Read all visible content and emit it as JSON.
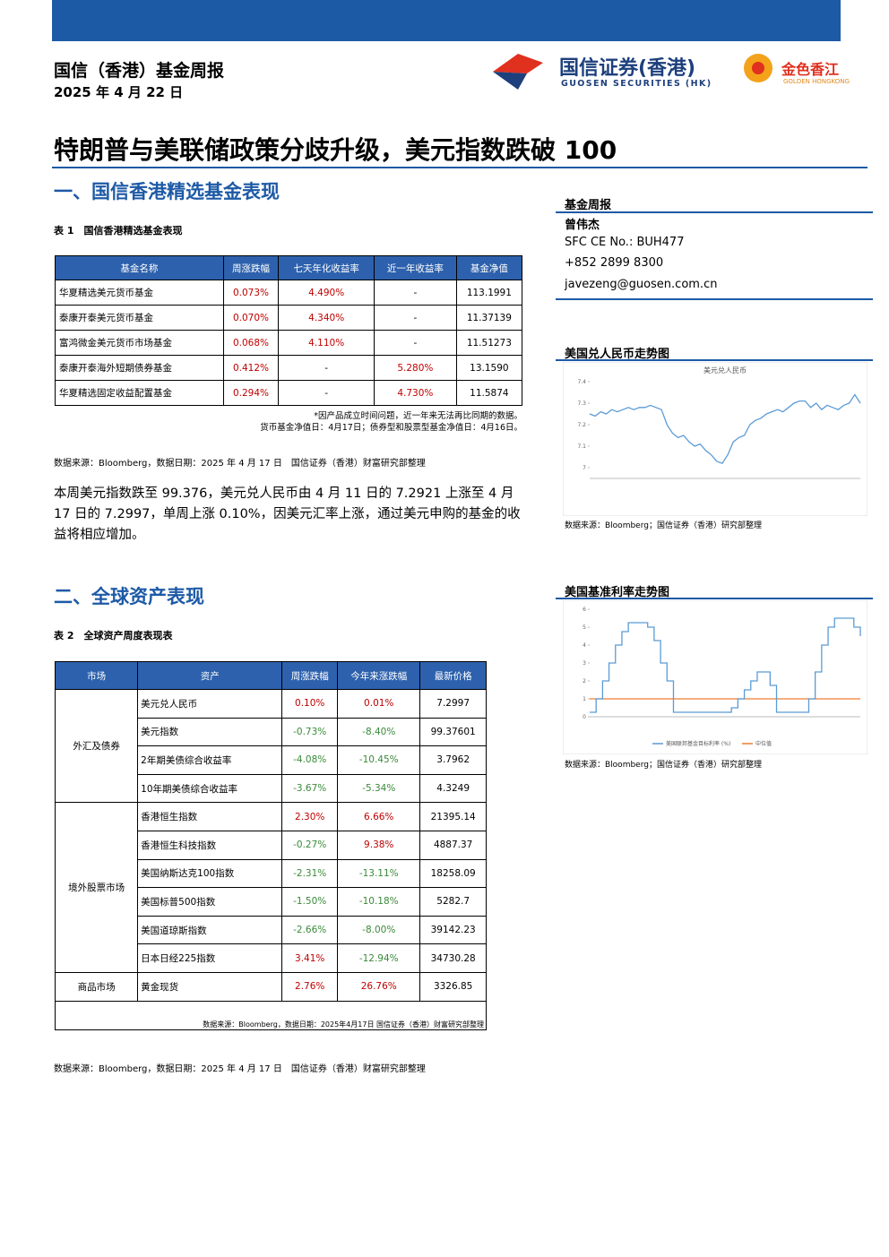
{
  "header": {
    "title": "国信（香港）基金周报",
    "date": "2025 年 4 月 22 日",
    "logo_name": "国信证券(香港)",
    "logo_english": "GUOSEN SECURITIES (HK)",
    "brand": "金色香江",
    "brand_english": "GOLDEN HONGKONG"
  },
  "headline": "特朗普与美联储政策分歧升级，美元指数跌破 100",
  "section1": {
    "heading": "一、国信香港精选基金表现",
    "caption": "表 1　国信香港精选基金表现",
    "table": {
      "columns": [
        "基金名称",
        "周涨跌幅",
        "七天年化收益率",
        "近一年收益率",
        "基金净值"
      ],
      "rows": [
        [
          "华夏精选美元货币基金",
          "0.073%",
          "4.490%",
          "-",
          "113.1991"
        ],
        [
          "泰康开泰美元货币基金",
          "0.070%",
          "4.340%",
          "-",
          "11.37139"
        ],
        [
          "富鸿微金美元货币市场基金",
          "0.068%",
          "4.110%",
          "-",
          "11.51273"
        ],
        [
          "泰康开泰海外短期债券基金",
          "0.412%",
          "-",
          "5.280%",
          "13.1590"
        ],
        [
          "华夏精选固定收益配置基金",
          "0.294%",
          "-",
          "4.730%",
          "11.5874"
        ]
      ],
      "notes": [
        "*因产品成立时间问题，近一年来无法再比同期的数据。",
        "货币基金净值日：4月17日；债券型和股票型基金净值日：4月16日。"
      ]
    },
    "source": "数据来源：Bloomberg，数据日期：2025 年 4 月 17 日　国信证券（香港）财富研究部整理",
    "paragraph": "本周美元指数跌至 99.376，美元兑人民币由 4 月 11 日的 7.2921 上涨至 4 月 17 日的 7.2997，单周上涨 0.10%，因美元汇率上涨，通过美元申购的基金的收益将相应增加。"
  },
  "section2": {
    "heading": "二、全球资产表现",
    "caption": "表 2　全球资产周度表现表",
    "table": {
      "columns": [
        "市场",
        "资产",
        "周涨跌幅",
        "今年来涨跌幅",
        "最新价格"
      ],
      "groups": [
        {
          "market": "外汇及债券",
          "rows": [
            [
              "美元兑人民币",
              "0.10%",
              "0.01%",
              "7.2997"
            ],
            [
              "美元指数",
              "-0.73%",
              "-8.40%",
              "99.37601"
            ],
            [
              "2年期美债综合收益率",
              "-4.08%",
              "-10.45%",
              "3.7962"
            ],
            [
              "10年期美债综合收益率",
              "-3.67%",
              "-5.34%",
              "4.3249"
            ]
          ]
        },
        {
          "market": "境外股票市场",
          "rows": [
            [
              "香港恒生指数",
              "2.30%",
              "6.66%",
              "21395.14"
            ],
            [
              "香港恒生科技指数",
              "-0.27%",
              "9.38%",
              "4887.37"
            ],
            [
              "美国纳斯达克100指数",
              "-2.31%",
              "-13.11%",
              "18258.09"
            ],
            [
              "美国标普500指数",
              "-1.50%",
              "-10.18%",
              "5282.7"
            ],
            [
              "美国道琼斯指数",
              "-2.66%",
              "-8.00%",
              "39142.23"
            ],
            [
              "日本日经225指数",
              "3.41%",
              "-12.94%",
              "34730.28"
            ]
          ]
        },
        {
          "market": "商品市场",
          "rows": [
            [
              "黄金现货",
              "2.76%",
              "26.76%",
              "3326.85"
            ]
          ]
        }
      ],
      "footer": "数据来源：Bloomberg，数据日期：2025年4月17日 国信证券（香港）财富研究部整理"
    },
    "source": "数据来源：Bloomberg，数据日期：2025 年 4 月 17 日　国信证券（香港）财富研究部整理"
  },
  "sidebar": {
    "label": "基金周报",
    "author": "曾伟杰",
    "sfc": "SFC CE No.: BUH477",
    "phone": "+852 2899 8300",
    "email": "javezeng@guosen.com.cn"
  },
  "charts": [
    {
      "type": "line",
      "title": "美国兑人民币走势图",
      "inner_title": "美元兑人民币",
      "color": "#5b9bd5",
      "ylim": [
        6.95,
        7.4
      ],
      "yticks": [
        7.0,
        7.1,
        7.2,
        7.3,
        7.4
      ],
      "values": [
        7.25,
        7.24,
        7.26,
        7.25,
        7.27,
        7.26,
        7.27,
        7.28,
        7.27,
        7.28,
        7.28,
        7.29,
        7.28,
        7.27,
        7.2,
        7.16,
        7.14,
        7.15,
        7.12,
        7.1,
        7.11,
        7.08,
        7.06,
        7.03,
        7.02,
        7.06,
        7.12,
        7.14,
        7.15,
        7.2,
        7.22,
        7.23,
        7.25,
        7.26,
        7.27,
        7.26,
        7.28,
        7.3,
        7.31,
        7.31,
        7.28,
        7.3,
        7.27,
        7.29,
        7.28,
        7.27,
        7.29,
        7.3,
        7.34,
        7.3
      ],
      "source": "数据来源：Bloomberg；国信证券（香港）研究部整理"
    },
    {
      "type": "line",
      "title": "美国基准利率走势图",
      "color": "#5b9bd5",
      "ylim": [
        0,
        6
      ],
      "yticks": [
        0,
        1,
        2,
        3,
        4,
        5,
        6
      ],
      "series_name": "美国联邦基金目标利率 (%)",
      "values": [
        0.25,
        1,
        2,
        3,
        4,
        4.75,
        5.25,
        5.25,
        5.25,
        5,
        4.25,
        3,
        2,
        0.25,
        0.25,
        0.25,
        0.25,
        0.25,
        0.25,
        0.25,
        0.25,
        0.25,
        0.5,
        1,
        1.5,
        2,
        2.5,
        2.5,
        1.75,
        0.25,
        0.25,
        0.25,
        0.25,
        0.25,
        1,
        2.5,
        4,
        5,
        5.5,
        5.5,
        5.5,
        5,
        4.5
      ],
      "reference_line": {
        "name": "中位值",
        "value": 1,
        "color": "#ed7d31"
      },
      "source": "数据来源：Bloomberg；国信证券（香港）研究部整理"
    }
  ]
}
